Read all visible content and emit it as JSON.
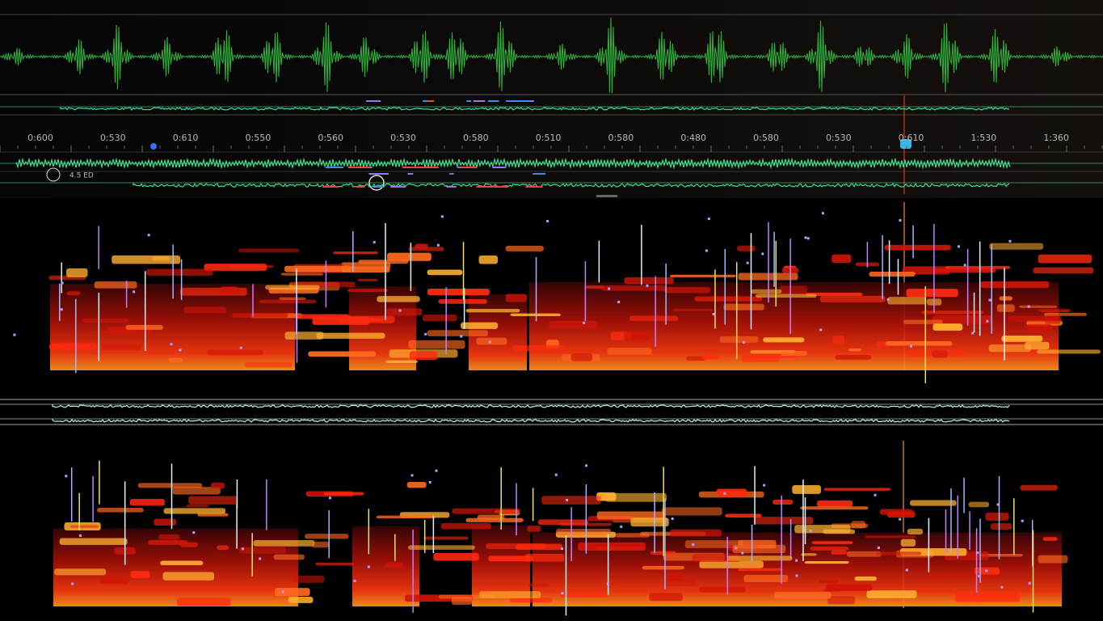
{
  "timeline": {
    "labels": [
      "0:600",
      "0:530",
      "0:610",
      "0:550",
      "0:560",
      "0:530",
      "0:580",
      "0:510",
      "0:580",
      "0:480",
      "0:580",
      "0:530",
      "0:610",
      "1:530",
      "1:360"
    ]
  },
  "toolbar": {
    "badge": "4.5 ED"
  }
}
